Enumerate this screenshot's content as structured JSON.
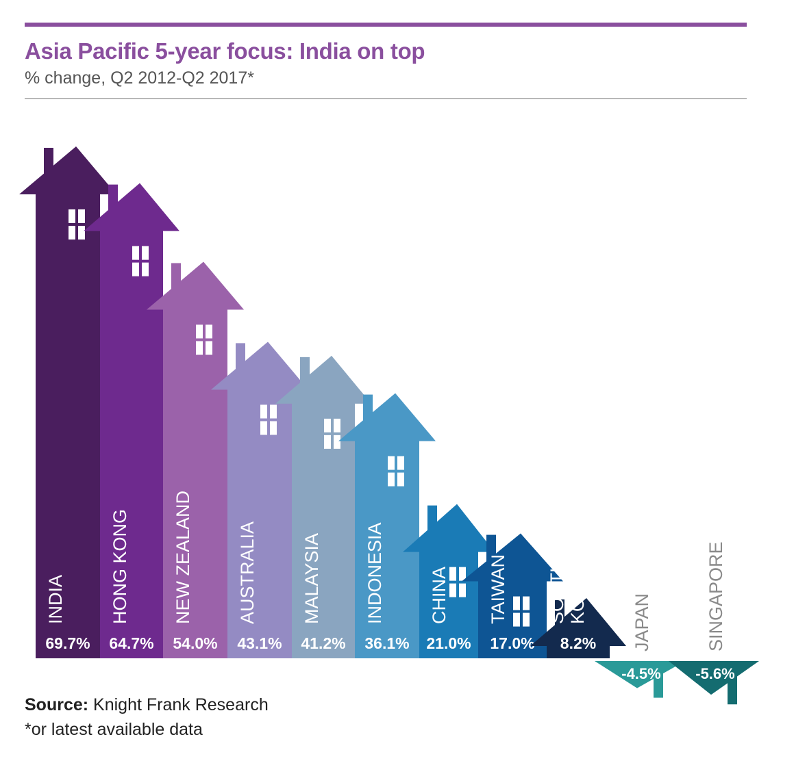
{
  "header": {
    "title": "Asia Pacific 5-year focus: India on top",
    "subtitle": "% change, Q2 2012-Q2 2017*"
  },
  "footer": {
    "source_label": "Source:",
    "source_text": "Knight Frank Research",
    "note": "*or latest available data"
  },
  "chart_data": {
    "type": "bar",
    "title": "Asia Pacific 5-year focus: India on top",
    "subtitle": "% change, Q2 2012-Q2 2017*",
    "unit": "%",
    "categories": [
      "INDIA",
      "HONG KONG",
      "NEW ZEALAND",
      "AUSTRALIA",
      "MALAYSIA",
      "INDONESIA",
      "CHINA",
      "TAIWAN",
      "SOUTH KOREA",
      "JAPAN",
      "SINGAPORE"
    ],
    "values": [
      69.7,
      64.7,
      54.0,
      43.1,
      41.2,
      36.1,
      21.0,
      17.0,
      8.2,
      -4.5,
      -5.6
    ],
    "value_labels": [
      "69.7%",
      "64.7%",
      "54.0%",
      "43.1%",
      "41.2%",
      "36.1%",
      "21.0%",
      "17.0%",
      "8.2%",
      "-4.5%",
      "-5.6%"
    ],
    "label_lines": [
      [
        "INDIA"
      ],
      [
        "HONG KONG"
      ],
      [
        "NEW ZEALAND"
      ],
      [
        "AUSTRALIA"
      ],
      [
        "MALAYSIA"
      ],
      [
        "INDONESIA"
      ],
      [
        "CHINA"
      ],
      [
        "TAIWAN"
      ],
      [
        "SOUTH",
        "KOREA"
      ],
      [
        "JAPAN"
      ],
      [
        "SINGAPORE"
      ]
    ],
    "colors": [
      "#4a1e5e",
      "#6e2a8e",
      "#9b62aa",
      "#948bc3",
      "#8aa5c0",
      "#4a98c6",
      "#1a7bb6",
      "#0e5594",
      "#132a4e",
      "#2a9a98",
      "#146c70"
    ],
    "style": "house-shaped bars; negative values shown as down arrows"
  }
}
